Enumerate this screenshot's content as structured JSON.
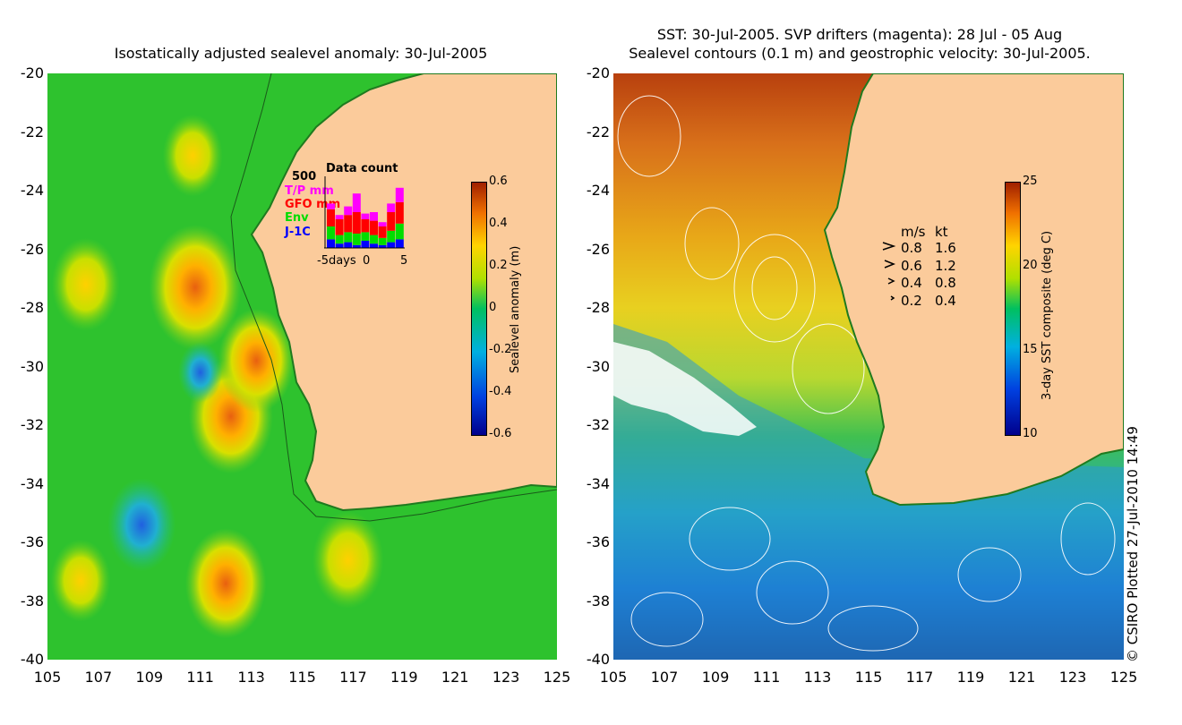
{
  "chart_data": [
    {
      "type": "heatmap",
      "title": "Isostatically adjusted sealevel anomaly: 30-Jul-2005",
      "x_ticks": [
        "105",
        "107",
        "109",
        "111",
        "113",
        "115",
        "117",
        "119",
        "121",
        "123",
        "125"
      ],
      "y_ticks": [
        "-20",
        "-22",
        "-24",
        "-26",
        "-28",
        "-30",
        "-32",
        "-34",
        "-36",
        "-38",
        "-40"
      ],
      "xlim": [
        105,
        125
      ],
      "ylim": [
        -40,
        -20
      ],
      "colorbar": {
        "label": "Sealevel anomaly (m)",
        "ticks": [
          "0.6",
          "0.4",
          "0.2",
          "0",
          "-0.2",
          "-0.4",
          "-0.6"
        ],
        "range": [
          -0.6,
          0.6
        ]
      },
      "inset": {
        "title": "Data count",
        "y_max_label": "500",
        "x_ticks": [
          "-5days",
          "0",
          "5"
        ],
        "legend": [
          {
            "name": "T/P mm",
            "color": "#ff00ff"
          },
          {
            "name": "GFO mm",
            "color": "#ff0000"
          },
          {
            "name": "Env",
            "color": "#00dd00"
          },
          {
            "name": "J-1C",
            "color": "#0000ff"
          }
        ],
        "bars": [
          {
            "jtc": 60,
            "env": 90,
            "gfo": 120,
            "tp": 40
          },
          {
            "jtc": 30,
            "env": 60,
            "gfo": 110,
            "tp": 30
          },
          {
            "jtc": 40,
            "env": 70,
            "gfo": 120,
            "tp": 60
          },
          {
            "jtc": 20,
            "env": 80,
            "gfo": 150,
            "tp": 130
          },
          {
            "jtc": 50,
            "env": 60,
            "gfo": 90,
            "tp": 40
          },
          {
            "jtc": 30,
            "env": 60,
            "gfo": 100,
            "tp": 60
          },
          {
            "jtc": 20,
            "env": 50,
            "gfo": 80,
            "tp": 30
          },
          {
            "jtc": 40,
            "env": 80,
            "gfo": 130,
            "tp": 60
          },
          {
            "jtc": 60,
            "env": 110,
            "gfo": 150,
            "tp": 100
          }
        ]
      },
      "features": [
        {
          "name": "anomaly-high",
          "lon": 110.8,
          "lat": -27.3,
          "value": 0.35
        },
        {
          "name": "anomaly-high",
          "lon": 112.2,
          "lat": -31.7,
          "value": 0.3
        },
        {
          "name": "anomaly-high",
          "lon": 113.2,
          "lat": -29.8,
          "value": 0.25
        },
        {
          "name": "anomaly-high",
          "lon": 106.5,
          "lat": -27.2,
          "value": 0.2
        },
        {
          "name": "anomaly-high",
          "lon": 112.0,
          "lat": -37.4,
          "value": 0.28
        },
        {
          "name": "anomaly-high",
          "lon": 116.8,
          "lat": -36.6,
          "value": 0.22
        },
        {
          "name": "anomaly-high",
          "lon": 106.3,
          "lat": -37.3,
          "value": 0.15
        },
        {
          "name": "anomaly-high",
          "lon": 110.7,
          "lat": -22.8,
          "value": 0.15
        },
        {
          "name": "anomaly-low",
          "lon": 108.7,
          "lat": -35.4,
          "value": -0.2
        },
        {
          "name": "anomaly-low",
          "lon": 111.0,
          "lat": -30.2,
          "value": -0.05
        }
      ]
    },
    {
      "type": "heatmap",
      "title": "SST: 30-Jul-2005. SVP drifters (magenta): 28 Jul - 05 Aug",
      "subtitle": "Sealevel contours (0.1 m) and geostrophic velocity: 30-Jul-2005.",
      "x_ticks": [
        "105",
        "107",
        "109",
        "111",
        "113",
        "115",
        "117",
        "119",
        "121",
        "123",
        "125"
      ],
      "y_ticks": [
        "-20",
        "-22",
        "-24",
        "-26",
        "-28",
        "-30",
        "-32",
        "-34",
        "-36",
        "-38",
        "-40"
      ],
      "xlim": [
        105,
        125
      ],
      "ylim": [
        -40,
        -20
      ],
      "colorbar": {
        "label": "3-day SST composite (deg C)",
        "ticks": [
          "25",
          "20",
          "15",
          "10"
        ],
        "range": [
          10,
          25
        ]
      },
      "velocity_legend": {
        "header_ms": "m/s",
        "header_kt": "kt",
        "rows": [
          {
            "ms": "0.8",
            "kt": "1.6"
          },
          {
            "ms": "0.6",
            "kt": "1.2"
          },
          {
            "ms": "0.4",
            "kt": "0.8"
          },
          {
            "ms": "0.2",
            "kt": "0.4"
          }
        ]
      }
    }
  ],
  "credit": "© CSIRO Plotted 27-Jul-2010 14:49",
  "colors": {
    "land": "#fbcb9b",
    "sla_background": "#22bb22",
    "sst_warm": "#d2691e",
    "sst_cold": "#1560d0"
  }
}
